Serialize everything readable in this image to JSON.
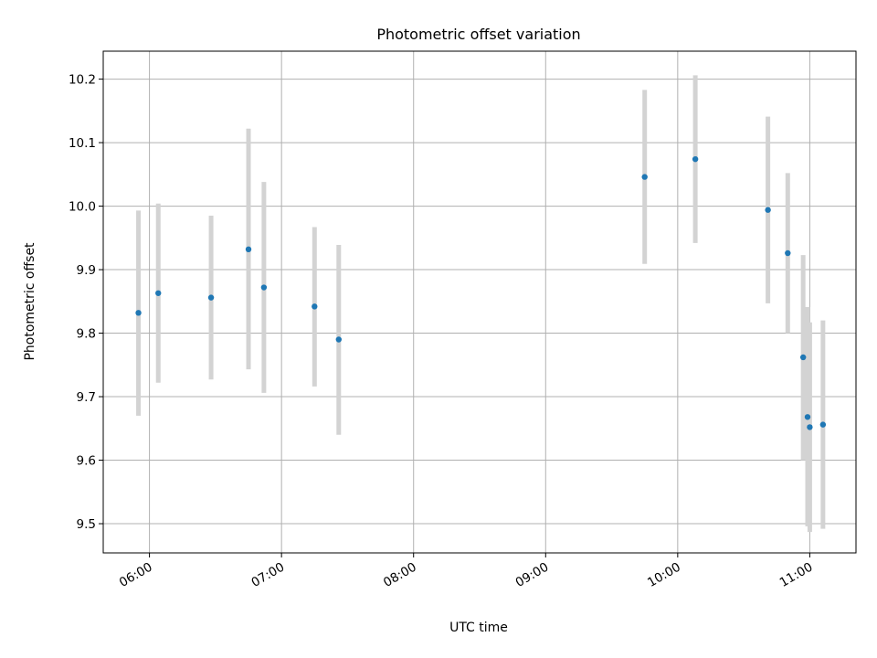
{
  "chart_data": {
    "type": "scatter",
    "title": "Photometric offset variation",
    "xlabel": "UTC time",
    "ylabel": "Photometric offset",
    "x_is_time": true,
    "xlim": [
      "05:39",
      "11:21"
    ],
    "ylim": [
      9.454,
      10.244
    ],
    "xticks": [
      "06:00",
      "07:00",
      "08:00",
      "09:00",
      "10:00",
      "11:00"
    ],
    "yticks": [
      9.5,
      9.6,
      9.7,
      9.8,
      9.9,
      10.0,
      10.1,
      10.2
    ],
    "ytick_labels": [
      "9.5",
      "9.6",
      "9.7",
      "9.8",
      "9.9",
      "10.0",
      "10.1",
      "10.2"
    ],
    "xtick_rotation_deg": 30,
    "grid": true,
    "point_color": "#1f77b4",
    "errorbar_color": "#d3d3d3",
    "points": [
      {
        "x": "05:55",
        "y": 9.832,
        "ylow": 9.67,
        "yhigh": 9.993
      },
      {
        "x": "06:04",
        "y": 9.863,
        "ylow": 9.722,
        "yhigh": 10.004
      },
      {
        "x": "06:28",
        "y": 9.856,
        "ylow": 9.727,
        "yhigh": 9.985
      },
      {
        "x": "06:45",
        "y": 9.932,
        "ylow": 9.743,
        "yhigh": 10.122
      },
      {
        "x": "06:52",
        "y": 9.872,
        "ylow": 9.706,
        "yhigh": 10.038
      },
      {
        "x": "07:15",
        "y": 9.842,
        "ylow": 9.716,
        "yhigh": 9.967
      },
      {
        "x": "07:26",
        "y": 9.79,
        "ylow": 9.64,
        "yhigh": 9.939
      },
      {
        "x": "09:45",
        "y": 10.046,
        "ylow": 9.909,
        "yhigh": 10.183
      },
      {
        "x": "10:08",
        "y": 10.074,
        "ylow": 9.942,
        "yhigh": 10.206
      },
      {
        "x": "10:41",
        "y": 9.994,
        "ylow": 9.847,
        "yhigh": 10.141
      },
      {
        "x": "10:50",
        "y": 9.926,
        "ylow": 9.8,
        "yhigh": 10.052
      },
      {
        "x": "10:57",
        "y": 9.762,
        "ylow": 9.6,
        "yhigh": 9.923
      },
      {
        "x": "10:59",
        "y": 9.668,
        "ylow": 9.496,
        "yhigh": 9.841
      },
      {
        "x": "11:00",
        "y": 9.652,
        "ylow": 9.487,
        "yhigh": 9.817
      },
      {
        "x": "11:06",
        "y": 9.656,
        "ylow": 9.492,
        "yhigh": 9.82
      }
    ]
  }
}
